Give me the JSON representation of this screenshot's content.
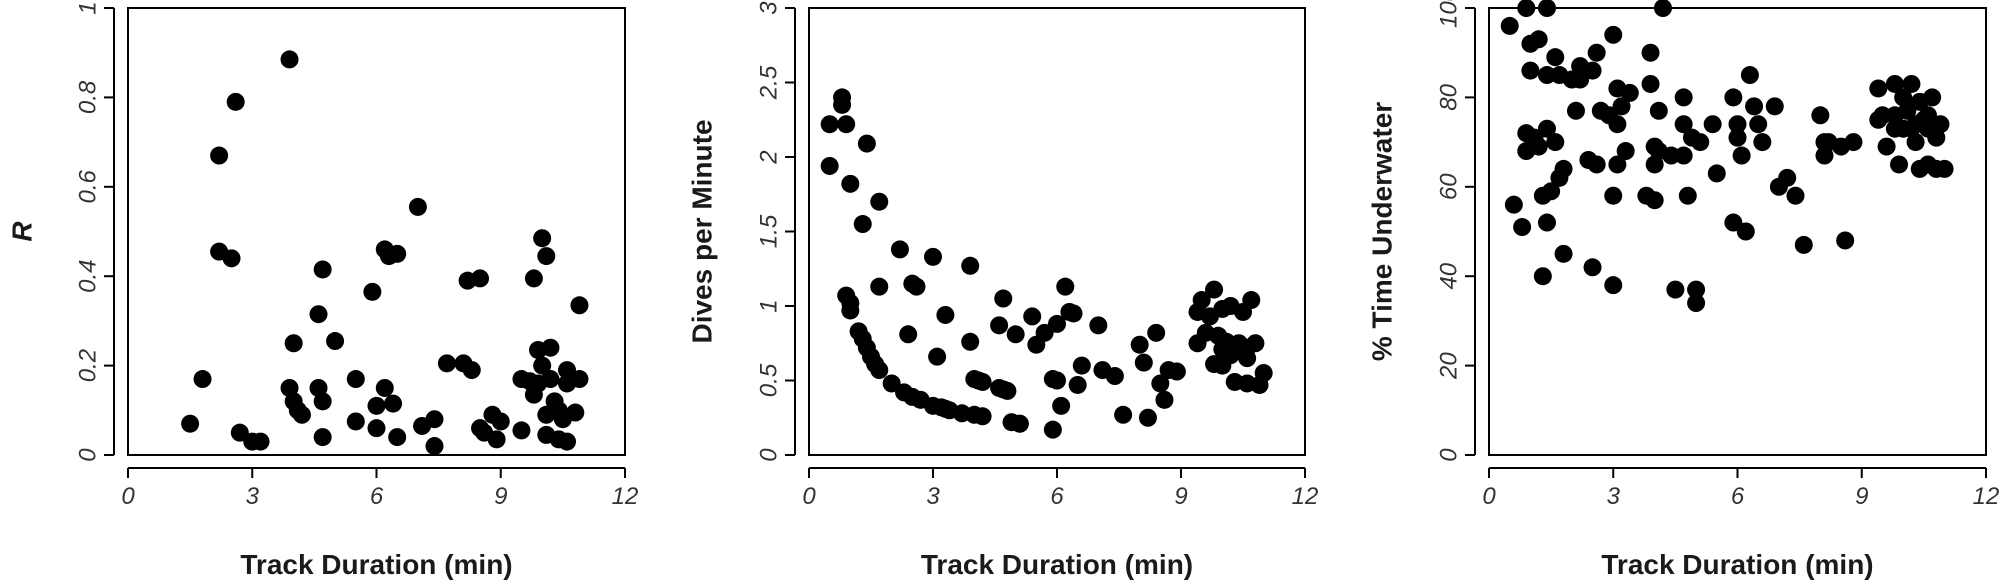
{
  "chart_data": [
    {
      "type": "scatter",
      "xlabel": "Track Duration (min)",
      "ylabel": "R",
      "xlim": [
        0,
        12
      ],
      "ylim": [
        0,
        1
      ],
      "xticks": [
        0,
        3,
        6,
        9,
        12
      ],
      "yticks": [
        0,
        0.2,
        0.4,
        0.6,
        0.8,
        1
      ],
      "xtick_labels": [
        "0",
        "3",
        "6",
        "9",
        "12"
      ],
      "ytick_labels": [
        "0",
        "0.2",
        "0.4",
        "0.6",
        "0.8",
        "1"
      ],
      "grid": false,
      "points": [
        [
          1.5,
          0.07
        ],
        [
          1.8,
          0.17
        ],
        [
          2.2,
          0.67
        ],
        [
          2.2,
          0.455
        ],
        [
          2.5,
          0.44
        ],
        [
          2.6,
          0.79
        ],
        [
          2.7,
          0.05
        ],
        [
          3.0,
          0.03
        ],
        [
          3.2,
          0.03
        ],
        [
          3.9,
          0.885
        ],
        [
          4.0,
          0.25
        ],
        [
          3.9,
          0.15
        ],
        [
          4.0,
          0.12
        ],
        [
          4.1,
          0.1
        ],
        [
          4.2,
          0.09
        ],
        [
          4.6,
          0.15
        ],
        [
          4.6,
          0.315
        ],
        [
          4.7,
          0.415
        ],
        [
          4.7,
          0.12
        ],
        [
          4.7,
          0.04
        ],
        [
          5.0,
          0.255
        ],
        [
          5.5,
          0.17
        ],
        [
          5.5,
          0.075
        ],
        [
          5.9,
          0.365
        ],
        [
          6.0,
          0.06
        ],
        [
          6.0,
          0.11
        ],
        [
          6.2,
          0.46
        ],
        [
          6.2,
          0.15
        ],
        [
          6.3,
          0.445
        ],
        [
          6.4,
          0.115
        ],
        [
          6.5,
          0.45
        ],
        [
          6.5,
          0.04
        ],
        [
          7.0,
          0.555
        ],
        [
          7.1,
          0.065
        ],
        [
          7.4,
          0.08
        ],
        [
          7.4,
          0.02
        ],
        [
          7.7,
          0.205
        ],
        [
          8.1,
          0.205
        ],
        [
          8.2,
          0.39
        ],
        [
          8.3,
          0.19
        ],
        [
          8.5,
          0.395
        ],
        [
          8.5,
          0.06
        ],
        [
          8.6,
          0.05
        ],
        [
          8.8,
          0.09
        ],
        [
          8.9,
          0.035
        ],
        [
          9.0,
          0.075
        ],
        [
          9.5,
          0.17
        ],
        [
          9.5,
          0.055
        ],
        [
          9.7,
          0.165
        ],
        [
          9.8,
          0.135
        ],
        [
          9.8,
          0.395
        ],
        [
          9.9,
          0.235
        ],
        [
          9.9,
          0.16
        ],
        [
          10.0,
          0.485
        ],
        [
          10.0,
          0.2
        ],
        [
          10.1,
          0.445
        ],
        [
          10.1,
          0.09
        ],
        [
          10.1,
          0.045
        ],
        [
          10.2,
          0.24
        ],
        [
          10.2,
          0.17
        ],
        [
          10.3,
          0.12
        ],
        [
          10.4,
          0.1
        ],
        [
          10.4,
          0.035
        ],
        [
          10.5,
          0.08
        ],
        [
          10.6,
          0.19
        ],
        [
          10.6,
          0.03
        ],
        [
          10.6,
          0.16
        ],
        [
          10.7,
          0.17
        ],
        [
          10.8,
          0.095
        ],
        [
          10.9,
          0.335
        ],
        [
          10.9,
          0.17
        ]
      ]
    },
    {
      "type": "scatter",
      "xlabel": "Track Duration (min)",
      "ylabel": "Dives per Minute",
      "xlim": [
        0,
        12
      ],
      "ylim": [
        0,
        3
      ],
      "xticks": [
        0,
        3,
        6,
        9,
        12
      ],
      "yticks": [
        0,
        0.5,
        1,
        1.5,
        2,
        2.5,
        3
      ],
      "xtick_labels": [
        "0",
        "3",
        "6",
        "9",
        "12"
      ],
      "ytick_labels": [
        "0",
        "0.5",
        "1",
        "1.5",
        "2",
        "2.5",
        "3"
      ],
      "grid": false,
      "points": [
        [
          0.5,
          2.22
        ],
        [
          0.5,
          1.94
        ],
        [
          0.8,
          2.4
        ],
        [
          0.8,
          2.35
        ],
        [
          0.9,
          2.22
        ],
        [
          0.9,
          1.07
        ],
        [
          1.0,
          1.02
        ],
        [
          1.0,
          0.97
        ],
        [
          1.0,
          1.82
        ],
        [
          1.2,
          0.83
        ],
        [
          1.3,
          0.78
        ],
        [
          1.3,
          1.55
        ],
        [
          1.4,
          0.72
        ],
        [
          1.4,
          2.09
        ],
        [
          1.5,
          0.66
        ],
        [
          1.6,
          0.61
        ],
        [
          1.7,
          0.57
        ],
        [
          1.7,
          1.13
        ],
        [
          1.7,
          1.7
        ],
        [
          2.0,
          0.48
        ],
        [
          2.2,
          1.38
        ],
        [
          2.3,
          0.42
        ],
        [
          2.4,
          0.81
        ],
        [
          2.5,
          0.39
        ],
        [
          2.5,
          1.15
        ],
        [
          2.6,
          1.13
        ],
        [
          2.7,
          0.37
        ],
        [
          3.0,
          0.33
        ],
        [
          3.0,
          1.33
        ],
        [
          3.1,
          0.66
        ],
        [
          3.2,
          0.32
        ],
        [
          3.3,
          0.94
        ],
        [
          3.3,
          0.31
        ],
        [
          3.4,
          0.3
        ],
        [
          3.7,
          0.28
        ],
        [
          3.9,
          1.27
        ],
        [
          3.9,
          0.76
        ],
        [
          4.0,
          0.27
        ],
        [
          4.0,
          0.51
        ],
        [
          4.1,
          0.5
        ],
        [
          4.2,
          0.26
        ],
        [
          4.2,
          0.49
        ],
        [
          4.6,
          0.87
        ],
        [
          4.6,
          0.45
        ],
        [
          4.7,
          1.05
        ],
        [
          4.7,
          0.44
        ],
        [
          4.8,
          0.43
        ],
        [
          4.9,
          0.22
        ],
        [
          5.0,
          0.81
        ],
        [
          5.1,
          0.21
        ],
        [
          5.1,
          0.21
        ],
        [
          5.4,
          0.93
        ],
        [
          5.5,
          0.74
        ],
        [
          5.7,
          0.82
        ],
        [
          5.9,
          0.17
        ],
        [
          6.0,
          0.88
        ],
        [
          5.9,
          0.51
        ],
        [
          6.0,
          0.5
        ],
        [
          6.1,
          0.33
        ],
        [
          6.2,
          1.13
        ],
        [
          6.3,
          0.96
        ],
        [
          6.4,
          0.95
        ],
        [
          6.5,
          0.47
        ],
        [
          6.6,
          0.6
        ],
        [
          7.0,
          0.87
        ],
        [
          7.1,
          0.57
        ],
        [
          7.4,
          0.53
        ],
        [
          7.6,
          0.27
        ],
        [
          8.0,
          0.74
        ],
        [
          8.1,
          0.62
        ],
        [
          8.2,
          0.25
        ],
        [
          8.4,
          0.82
        ],
        [
          8.5,
          0.48
        ],
        [
          8.6,
          0.37
        ],
        [
          8.7,
          0.57
        ],
        [
          8.9,
          0.56
        ],
        [
          9.4,
          0.96
        ],
        [
          9.4,
          0.75
        ],
        [
          9.5,
          1.04
        ],
        [
          9.6,
          0.82
        ],
        [
          9.7,
          0.93
        ],
        [
          9.8,
          1.11
        ],
        [
          9.8,
          0.61
        ],
        [
          9.9,
          0.8
        ],
        [
          10.0,
          0.98
        ],
        [
          10.0,
          0.71
        ],
        [
          10.0,
          0.6
        ],
        [
          10.1,
          0.76
        ],
        [
          10.2,
          1.0
        ],
        [
          10.2,
          0.67
        ],
        [
          10.3,
          0.49
        ],
        [
          10.4,
          0.75
        ],
        [
          10.4,
          0.73
        ],
        [
          10.5,
          0.96
        ],
        [
          10.6,
          0.72
        ],
        [
          10.6,
          0.65
        ],
        [
          10.6,
          0.48
        ],
        [
          10.7,
          1.04
        ],
        [
          10.8,
          0.75
        ],
        [
          10.9,
          0.47
        ],
        [
          11.0,
          0.55
        ]
      ]
    },
    {
      "type": "scatter",
      "xlabel": "Track Duration (min)",
      "ylabel": "% Time Underwater",
      "xlim": [
        0,
        12
      ],
      "ylim": [
        0,
        100
      ],
      "xticks": [
        0,
        3,
        6,
        9,
        12
      ],
      "yticks": [
        0,
        20,
        40,
        60,
        80,
        100
      ],
      "xtick_labels": [
        "0",
        "3",
        "6",
        "9",
        "12"
      ],
      "ytick_labels": [
        "0",
        "20",
        "40",
        "60",
        "80",
        "100"
      ],
      "grid": false,
      "points": [
        [
          0.5,
          96
        ],
        [
          0.6,
          56
        ],
        [
          0.8,
          51
        ],
        [
          0.9,
          68
        ],
        [
          0.9,
          72
        ],
        [
          0.9,
          100
        ],
        [
          1.0,
          92
        ],
        [
          1.0,
          86
        ],
        [
          1.1,
          71
        ],
        [
          1.2,
          93
        ],
        [
          1.2,
          69
        ],
        [
          1.3,
          58
        ],
        [
          1.3,
          40
        ],
        [
          1.4,
          100
        ],
        [
          1.4,
          73
        ],
        [
          1.4,
          85
        ],
        [
          1.4,
          52
        ],
        [
          1.5,
          59
        ],
        [
          1.6,
          89
        ],
        [
          1.6,
          70
        ],
        [
          1.7,
          85
        ],
        [
          1.7,
          62
        ],
        [
          1.8,
          45
        ],
        [
          1.8,
          64
        ],
        [
          2.0,
          84
        ],
        [
          2.1,
          77
        ],
        [
          2.2,
          87
        ],
        [
          2.2,
          84
        ],
        [
          2.4,
          66
        ],
        [
          2.5,
          42
        ],
        [
          2.5,
          86
        ],
        [
          2.6,
          90
        ],
        [
          2.6,
          65
        ],
        [
          2.7,
          77
        ],
        [
          2.9,
          76
        ],
        [
          3.0,
          94
        ],
        [
          3.0,
          58
        ],
        [
          3.0,
          38
        ],
        [
          3.1,
          82
        ],
        [
          3.1,
          74
        ],
        [
          3.1,
          65
        ],
        [
          3.2,
          78
        ],
        [
          3.3,
          68
        ],
        [
          3.4,
          81
        ],
        [
          3.8,
          58
        ],
        [
          3.9,
          90
        ],
        [
          3.9,
          83
        ],
        [
          4.0,
          69
        ],
        [
          4.0,
          65
        ],
        [
          4.0,
          57
        ],
        [
          4.1,
          68
        ],
        [
          4.1,
          77
        ],
        [
          4.2,
          100
        ],
        [
          4.4,
          67
        ],
        [
          4.5,
          37
        ],
        [
          4.7,
          74
        ],
        [
          4.7,
          80
        ],
        [
          4.7,
          67
        ],
        [
          4.8,
          58
        ],
        [
          4.9,
          71
        ],
        [
          5.0,
          37
        ],
        [
          5.0,
          34
        ],
        [
          5.1,
          70
        ],
        [
          5.4,
          74
        ],
        [
          5.5,
          63
        ],
        [
          5.9,
          80
        ],
        [
          5.9,
          52
        ],
        [
          6.0,
          74
        ],
        [
          6.0,
          71
        ],
        [
          6.1,
          67
        ],
        [
          6.2,
          50
        ],
        [
          6.3,
          85
        ],
        [
          6.4,
          78
        ],
        [
          6.5,
          74
        ],
        [
          6.6,
          70
        ],
        [
          6.9,
          78
        ],
        [
          7.0,
          60
        ],
        [
          7.2,
          62
        ],
        [
          7.4,
          58
        ],
        [
          7.6,
          47
        ],
        [
          8.0,
          76
        ],
        [
          8.1,
          70
        ],
        [
          8.1,
          67
        ],
        [
          8.2,
          70
        ],
        [
          8.5,
          69
        ],
        [
          8.6,
          48
        ],
        [
          8.8,
          70
        ],
        [
          9.4,
          82
        ],
        [
          9.4,
          75
        ],
        [
          9.5,
          76
        ],
        [
          9.6,
          69
        ],
        [
          9.8,
          76
        ],
        [
          9.8,
          73
        ],
        [
          9.8,
          83
        ],
        [
          9.9,
          65
        ],
        [
          10.0,
          73
        ],
        [
          10.0,
          80
        ],
        [
          10.1,
          77
        ],
        [
          10.2,
          83
        ],
        [
          10.2,
          73
        ],
        [
          10.3,
          74
        ],
        [
          10.3,
          70
        ],
        [
          10.4,
          79
        ],
        [
          10.4,
          64
        ],
        [
          10.5,
          75
        ],
        [
          10.6,
          65
        ],
        [
          10.6,
          76
        ],
        [
          10.6,
          73
        ],
        [
          10.7,
          80
        ],
        [
          10.8,
          64
        ],
        [
          10.8,
          71
        ],
        [
          10.9,
          74
        ],
        [
          11.0,
          64
        ]
      ]
    }
  ]
}
